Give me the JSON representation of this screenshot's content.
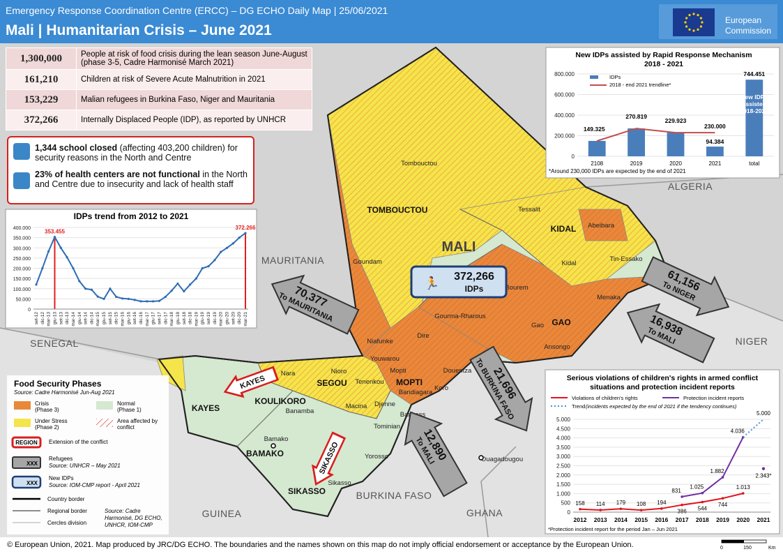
{
  "header": {
    "subtitle": "Emergency Response Coordination Centre (ERCC) – DG ECHO Daily Map | 25/06/2021",
    "title": "Mali | Humanitarian Crisis – June 2021",
    "logo": [
      "European",
      "Commission"
    ]
  },
  "key_figures": [
    {
      "value": "1,300,000",
      "text": "People at risk of food crisis during the lean season June-August (phase 3-5, Cadre Harmonisé March 2021)"
    },
    {
      "value": "161,210",
      "text": "Children at risk of Severe Acute Malnutrition in 2021"
    },
    {
      "value": "153,229",
      "text": "Malian refugees in Burkina Faso, Niger and Mauritania"
    },
    {
      "value": "372,266",
      "text": "Internally Displaced People (IDP), as reported by UNHCR"
    }
  ],
  "alerts": [
    {
      "bold": "1,344 school closed",
      "text": " (affecting 403,200 children) for security reasons in the North and Centre"
    },
    {
      "bold": "23% of health centers are not functional",
      "text": " in the North and Centre due to insecurity and lack of health staff"
    }
  ],
  "idp_trend": {
    "type": "line",
    "title": "IDPs trend from 2012 to 2021",
    "categories": [
      "set-12",
      "dic-12",
      "mar-13",
      "giu-13",
      "set-13",
      "dic-13",
      "mar-14",
      "giu-14",
      "set-14",
      "dic-14",
      "mar-15",
      "giu-15",
      "set-15",
      "dic-15",
      "mar-16",
      "giu-16",
      "set-16",
      "dic-16",
      "mar-17",
      "giu-17",
      "set-17",
      "dic-17",
      "mar-18",
      "giu-18",
      "set-18",
      "dic-18",
      "mar-19",
      "giu-19",
      "set-19",
      "dic-19",
      "mar-20",
      "giu-20",
      "set-20",
      "dic-20",
      "mar-21"
    ],
    "series": [
      {
        "color": "#2e6db4",
        "values": [
          120000,
          200000,
          283000,
          353455,
          300000,
          254000,
          200000,
          137000,
          100000,
          95000,
          61000,
          50000,
          100000,
          60000,
          52000,
          50000,
          45000,
          38000,
          38000,
          38000,
          40000,
          60000,
          90000,
          125000,
          87000,
          120000,
          150000,
          200000,
          210000,
          240000,
          280000,
          300000,
          322000,
          350000,
          372266
        ],
        "value_labels": [
          null,
          null,
          null,
          "353.455",
          null,
          null,
          null,
          null,
          null,
          null,
          null,
          null,
          null,
          null,
          null,
          null,
          null,
          null,
          null,
          null,
          null,
          null,
          null,
          null,
          null,
          null,
          null,
          null,
          null,
          null,
          null,
          null,
          null,
          null,
          "372.266"
        ],
        "label_color": "#e02020"
      }
    ],
    "ylim": [
      0,
      400000
    ],
    "yticks": [
      0,
      {
        "value": 50000,
        "label": "50.000"
      },
      {
        "value": 100000,
        "label": "100.000"
      },
      {
        "value": 150000,
        "label": "150.000"
      },
      {
        "value": 200000,
        "label": "200.000"
      },
      {
        "value": 250000,
        "label": "250.000"
      },
      {
        "value": 300000,
        "label": "300.000"
      },
      {
        "value": 350000,
        "label": "350.000"
      },
      {
        "value": 400000,
        "label": "400.000"
      }
    ],
    "grid": true
  },
  "rrm": {
    "type": "bar",
    "title": [
      "New IDPs assisted by Rapid Response Mechanism",
      "2018 - 2021"
    ],
    "categories": [
      "2108",
      "2019",
      "2020",
      "2021",
      "total"
    ],
    "series": [
      {
        "name": "IDPs",
        "type": "bar",
        "color": "#4a7ebb",
        "values": [
          149325,
          270819,
          229923,
          94384,
          744451
        ],
        "value_labels": [
          "149.325",
          "270.819",
          "229.923",
          "94.384",
          "744.451"
        ]
      },
      {
        "name": "2018 - end 2021 trendline*",
        "type": "line",
        "color": "#c0504d",
        "values": [
          149325,
          270819,
          229923,
          230000,
          null
        ],
        "value_labels": [
          null,
          null,
          null,
          "230.000",
          null
        ]
      }
    ],
    "annotation": [
      "New IDPs",
      "assisted",
      "2018-2021"
    ],
    "note": "*Around 230,000 IDPs are expected by the end of 2021",
    "ylim": [
      0,
      800000
    ],
    "yticks": [
      0,
      {
        "value": 200000,
        "label": "200.000"
      },
      {
        "value": 400000,
        "label": "400.000"
      },
      {
        "value": 600000,
        "label": "600.000"
      },
      {
        "value": 800000,
        "label": "800.000"
      }
    ],
    "grid": true
  },
  "violations": {
    "type": "line",
    "title": [
      "Serious violations of children's rights in armed conflict",
      "situations and protection incident reports"
    ],
    "categories": [
      "2012",
      "2013",
      "2014",
      "2015",
      "2016",
      "2017",
      "2018",
      "2019",
      "2020",
      "2021"
    ],
    "series": [
      {
        "name": "Violations of children's rights",
        "color": "#e0141c",
        "dashed": false,
        "values": [
          158,
          114,
          179,
          108,
          194,
          386,
          544,
          744,
          1013,
          null
        ],
        "value_labels": [
          "158",
          "114",
          "179",
          "108",
          "194",
          "386",
          "544",
          "744",
          "1.013",
          null
        ]
      },
      {
        "name": "Protection incident reports",
        "color": "#7030a0",
        "dashed": false,
        "values": [
          null,
          null,
          null,
          null,
          null,
          831,
          1025,
          1882,
          4036,
          null
        ],
        "value_labels": [
          null,
          null,
          null,
          null,
          null,
          "831",
          "1.025",
          "1.882",
          "4.036",
          null
        ]
      },
      {
        "name": "Trend",
        "legend_note": "(incidents expected by the end of 2021 if the tendency continues)",
        "color": "#4a90d9",
        "dashed": true,
        "values": [
          null,
          null,
          null,
          null,
          null,
          null,
          null,
          null,
          4036,
          5000
        ],
        "value_labels": [
          null,
          null,
          null,
          null,
          null,
          null,
          null,
          null,
          null,
          "5.000"
        ]
      }
    ],
    "partial_point": {
      "x": "2021",
      "value": 2343,
      "label": "2.343*",
      "color": "#7030a0"
    },
    "note": "*Protection incident report for the period Jan – Jun 2021",
    "ylim": [
      0,
      5000
    ],
    "yticks": [
      0,
      500,
      {
        "value": 1000,
        "label": "1.000"
      },
      {
        "value": 1500,
        "label": "1.500"
      },
      {
        "value": 2000,
        "label": "2.000"
      },
      {
        "value": 2500,
        "label": "2.500"
      },
      {
        "value": 3000,
        "label": "3.000"
      },
      {
        "value": 3500,
        "label": "3.500"
      },
      {
        "value": 4000,
        "label": "4.000"
      },
      {
        "value": 4500,
        "label": "4.500"
      },
      {
        "value": 5000,
        "label": "5.000"
      }
    ],
    "grid": true
  },
  "map": {
    "countries": [
      "MAURITANIA",
      "SENEGAL",
      "ALGERIA",
      "NIGER",
      "GUINEA",
      "BURKINA FASO",
      "GHANA"
    ],
    "country": "MALI",
    "regions": [
      "TOMBOUCTOU",
      "KIDAL",
      "GAO",
      "MOPTI",
      "SEGOU",
      "KOULIKORO",
      "KAYES",
      "BAMAKO",
      "SIKASSO"
    ],
    "places": [
      "Tombouctou",
      "Tessalit",
      "Abeibara",
      "Kidal",
      "Tin-Essako",
      "Goundam",
      "Bourem",
      "Menaka",
      "Gao",
      "Ansongo",
      "Gourma-Rharous",
      "Niafunke",
      "Dire",
      "Youwarou",
      "Douentza",
      "Tenenkou",
      "Nioro",
      "Nara",
      "Mopti",
      "Bandiagara",
      "Koro",
      "Macina",
      "Djenne",
      "Tominian",
      "Bankass",
      "Yorosso",
      "Banamba",
      "Bamako",
      "Sikasso",
      "Ouagadougou"
    ],
    "new_idps": {
      "value": "372,266",
      "label": "IDPs"
    },
    "refugees": [
      {
        "value": "70,377",
        "to": "To MAURITANIA"
      },
      {
        "value": "61,156",
        "to": "To NIGER"
      },
      {
        "value": "16,938",
        "to": "To MALI"
      },
      {
        "value": "21,696",
        "to": "To BURKINA FASO"
      },
      {
        "value": "12,890",
        "to": "To MALI"
      }
    ],
    "conflict_extension": [
      "KAYES",
      "SIKASSO"
    ]
  },
  "legend": {
    "title": "Food Security Phases",
    "source": "Source: Cadre Harmonisé Jun-Aug 2021",
    "phases": [
      {
        "label": "Crisis",
        "sub": "(Phase 3)",
        "color": "#e8893a"
      },
      {
        "label": "Normal",
        "sub": "(Phase 1)",
        "color": "#d5e8d0"
      },
      {
        "label": "Under Stress",
        "sub": "(Phase 2)",
        "color": "#f5e44a"
      },
      {
        "label": "Area affected by",
        "sub": "conflict",
        "color": "#e05050"
      }
    ],
    "region_symbol": "REGION",
    "region_text": "Extension of the conflict",
    "refugee_symbol": "XXX",
    "refugee_text": "Refugees",
    "refugee_source": "Source: UNHCR – May 2021",
    "idp_symbol": "XXX",
    "idp_text": "New IDPs",
    "idp_source": "Source: IOM-CMP report - April 2021",
    "borders": [
      "Country border",
      "Regional border",
      "Cercles division"
    ],
    "credits": [
      "Source: Cadre",
      "Harmonisé, DG ECHO,",
      "UNHCR, IOM-CMP"
    ]
  },
  "footer": {
    "text": "© European Union, 2021. Map produced by JRC/DG ECHO. The boundaries and the names shown on this map do not imply official endorsement or acceptance by the European Union.",
    "scale": [
      "0",
      "150",
      "Km"
    ]
  }
}
